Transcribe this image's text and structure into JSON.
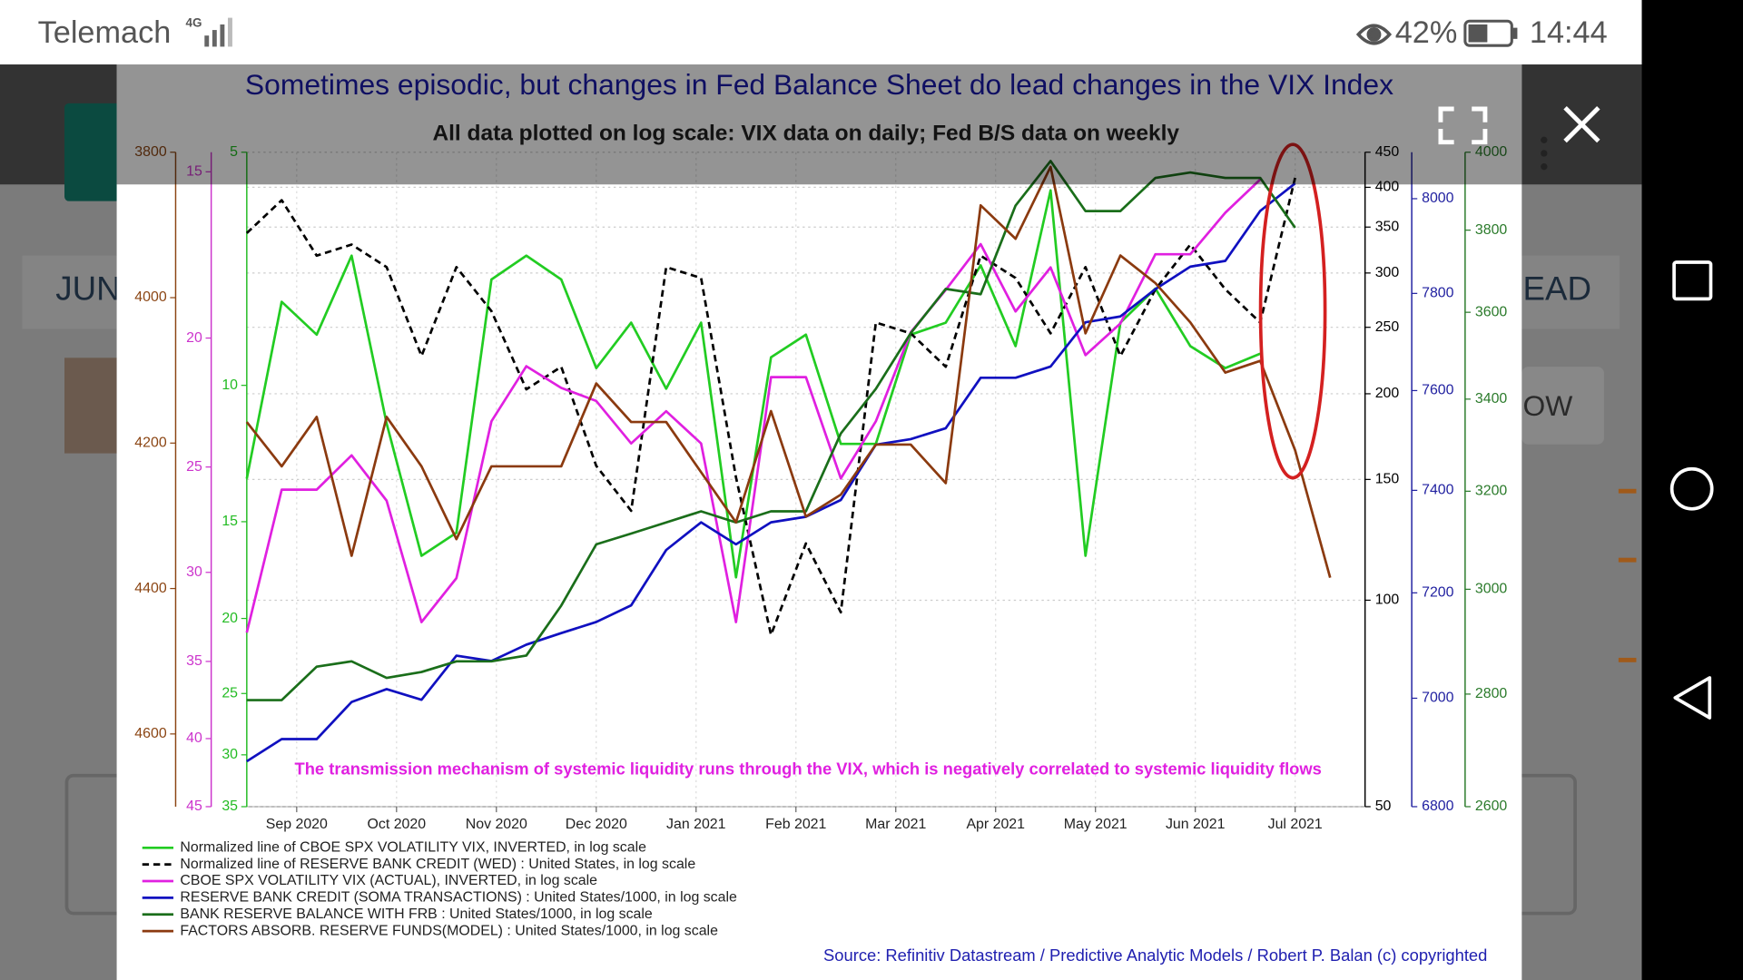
{
  "status_bar": {
    "carrier": "Telemach",
    "network": "4G",
    "battery": "42%",
    "time": "14:44"
  },
  "background": {
    "texts": [
      "JUN",
      "EAD",
      "OW"
    ]
  },
  "chart_data": {
    "type": "line",
    "title": "Sometimes episodic, but changes in Fed Balance Sheet do lead changes in the VIX Index",
    "subtitle": "All data plotted on log scale: VIX data on daily; Fed B/S data on weekly",
    "annotation": "The transmission mechanism of systemic liquidity runs through the VIX, which is negatively correlated to systemic liquidity flows",
    "source": "Source: Refinitiv Datastream / Predictive Analytic Models / Robert P. Balan (c) copyrighted",
    "grid": true,
    "xlim": [
      0,
      11.2
    ],
    "xticks": [
      {
        "value": 0.5,
        "label": "Sep 2020"
      },
      {
        "value": 1.5,
        "label": "Oct 2020"
      },
      {
        "value": 2.5,
        "label": "Nov 2020"
      },
      {
        "value": 3.5,
        "label": "Dec 2020"
      },
      {
        "value": 4.5,
        "label": "Jan 2021"
      },
      {
        "value": 5.5,
        "label": "Feb 2021"
      },
      {
        "value": 6.5,
        "label": "Mar 2021"
      },
      {
        "value": 7.5,
        "label": "Apr 2021"
      },
      {
        "value": 8.5,
        "label": "May 2021"
      },
      {
        "value": 9.5,
        "label": "Jun 2021"
      },
      {
        "value": 10.5,
        "label": "Jul 2021"
      }
    ],
    "x": [
      0,
      0.35,
      0.7,
      1.05,
      1.4,
      1.75,
      2.1,
      2.45,
      2.8,
      3.15,
      3.5,
      3.85,
      4.2,
      4.55,
      4.9,
      5.25,
      5.6,
      5.95,
      6.3,
      6.65,
      7,
      7.35,
      7.7,
      8.05,
      8.4,
      8.75,
      9.1,
      9.45,
      9.8,
      10.15,
      10.5,
      10.85
    ],
    "axes": [
      {
        "side": "left",
        "color": "#8b4513",
        "log": false,
        "inverted": true,
        "ylim": [
          3800,
          4700
        ],
        "yticks": [
          3800,
          4000,
          4200,
          4400,
          4600
        ]
      },
      {
        "side": "left",
        "color": "#cc33cc",
        "log": true,
        "inverted": true,
        "ylim": [
          14.5,
          45
        ],
        "yticks": [
          15,
          20,
          25,
          30,
          35,
          40,
          45
        ]
      },
      {
        "side": "left",
        "color": "#22bb22",
        "log": true,
        "inverted": true,
        "ylim": [
          5,
          35
        ],
        "yticks": [
          5,
          10,
          15,
          20,
          25,
          30,
          35
        ]
      },
      {
        "side": "right",
        "color": "#000000",
        "log": true,
        "inverted": false,
        "ylim": [
          50,
          450
        ],
        "yticks": [
          50,
          100,
          150,
          200,
          250,
          300,
          350,
          400,
          450
        ]
      },
      {
        "side": "right",
        "color": "#2020a0",
        "log": true,
        "inverted": false,
        "ylim": [
          6800,
          8100
        ],
        "yticks": [
          6800,
          7000,
          7200,
          7400,
          7600,
          7800,
          8000
        ]
      },
      {
        "side": "right",
        "color": "#2a7a2a",
        "log": true,
        "inverted": false,
        "ylim": [
          2600,
          4000
        ],
        "yticks": [
          2600,
          2800,
          3000,
          3200,
          3400,
          3600,
          3800,
          4000
        ]
      }
    ],
    "series": [
      {
        "name": "Normalized line of CBOE SPX VOLATILITY VIX, INVERTED, in log scale",
        "color": "#22cc22",
        "axis": 2,
        "dashed": false,
        "values": [
          13.2,
          7.8,
          8.6,
          6.8,
          11.2,
          16.6,
          15.5,
          7.3,
          6.8,
          7.3,
          9.5,
          8.3,
          10.1,
          8.3,
          17.7,
          9.2,
          8.6,
          11.9,
          11.9,
          8.6,
          8.3,
          7.0,
          8.9,
          5.6,
          16.6,
          8.3,
          7.5,
          8.9,
          9.5,
          9.1,
          null,
          null
        ]
      },
      {
        "name": "Normalized line of RESERVE BANK CREDIT (WED) : United States, in log scale",
        "color": "#000000",
        "axis": 3,
        "dashed": true,
        "values": [
          343,
          383,
          318,
          330,
          306,
          227,
          306,
          264,
          203,
          219,
          157,
          135,
          306,
          295,
          151,
          89,
          121,
          96,
          254,
          245,
          219,
          318,
          295,
          245,
          306,
          227,
          284,
          330,
          284,
          254,
          413,
          null
        ]
      },
      {
        "name": "CBOE SPX VOLATILITY VIX (ACTUAL), INVERTED, in log scale",
        "color": "#e020e0",
        "axis": 1,
        "dashed": false,
        "values": [
          33.3,
          26.0,
          26.0,
          24.5,
          26.5,
          32.7,
          30.3,
          23.1,
          21.0,
          21.8,
          22.3,
          24.0,
          22.7,
          24.0,
          32.7,
          21.4,
          21.4,
          25.5,
          23.1,
          19.8,
          18.4,
          17.0,
          19.1,
          17.7,
          20.6,
          19.5,
          17.3,
          17.3,
          16.1,
          15.2,
          null,
          null
        ]
      },
      {
        "name": "RESERVE BANK CREDIT (SOMA TRANSACTIONS) : United States/1000, in log scale",
        "color": "#1010c0",
        "axis": 4,
        "dashed": false,
        "values": [
          6883,
          6924,
          6924,
          6993,
          7017,
          6997,
          7080,
          7070,
          7101,
          7123,
          7144,
          7176,
          7283,
          7337,
          7294,
          7337,
          7348,
          7381,
          7491,
          7502,
          7524,
          7626,
          7626,
          7649,
          7740,
          7752,
          7809,
          7856,
          7868,
          7974,
          8033,
          null
        ]
      },
      {
        "name": "BANK RESERVE BALANCE WITH FRB : United States/1000, in log scale",
        "color": "#1a6e1a",
        "axis": 5,
        "dashed": false,
        "values": [
          2789,
          2789,
          2851,
          2861,
          2830,
          2841,
          2861,
          2861,
          2872,
          2968,
          3090,
          3112,
          3135,
          3158,
          3135,
          3158,
          3158,
          3324,
          3423,
          3551,
          3656,
          3643,
          3862,
          3977,
          3848,
          3848,
          3933,
          3947,
          3933,
          3933,
          3806,
          null
        ]
      },
      {
        "name": "FACTORS ABSORB. RESERVE FUNDS(MODEL) : United States/1000, in log scale",
        "color": "#8b3a0f",
        "axis": 0,
        "dashed": false,
        "values": [
          4171,
          4232,
          4164,
          4355,
          4164,
          4232,
          4332,
          4232,
          4232,
          4232,
          4118,
          4171,
          4171,
          4240,
          4309,
          4156,
          4301,
          4271,
          4202,
          4202,
          4255,
          3873,
          3919,
          3820,
          4049,
          3942,
          3980,
          4034,
          4103,
          4087,
          4210,
          4385
        ]
      }
    ]
  }
}
